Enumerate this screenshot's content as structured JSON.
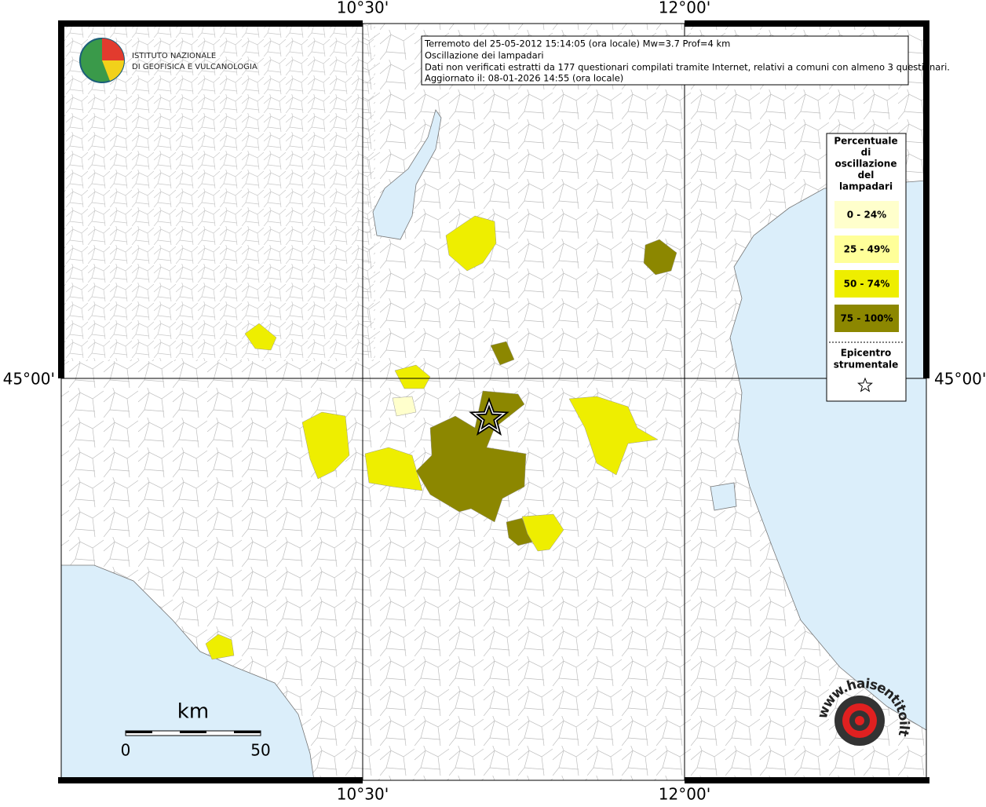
{
  "map": {
    "axis_labels": {
      "top": [
        "10°30'",
        "12°00'"
      ],
      "bottom": [
        "10°30'",
        "12°00'"
      ],
      "left": "45°00'",
      "right": "45°00'"
    },
    "info_box": [
      "Terremoto del 25-05-2012 15:14:05 (ora locale) Mw=3.7 Prof=4 km",
      "Oscillazione dei lampadari",
      "Dati non verificati estratti da 177 questionari compilati tramite Internet, relativi a comuni con almeno 3 questionari.",
      "Aggiornato il: 08-01-2026 14:55 (ora locale)"
    ],
    "legend": {
      "title": [
        "Percentuale",
        "di",
        "oscillazione",
        "del",
        "lampadari"
      ],
      "classes": [
        {
          "label": "0 - 24%",
          "color": "#ffffcc"
        },
        {
          "label": "25 - 49%",
          "color": "#ffff99"
        },
        {
          "label": "50 - 74%",
          "color": "#eeee00"
        },
        {
          "label": "75 - 100%",
          "color": "#8c8700"
        }
      ],
      "epicenter": [
        "Epicentro",
        "strumentale"
      ]
    },
    "scale_bar": {
      "unit": "km",
      "labels": [
        "0",
        "50"
      ]
    },
    "logo": [
      "ISTITUTO NAZIONALE",
      "DI GEOFISICA E VULCANOLOGIA"
    ],
    "watermark": "www.haisentitoilterremoto.it"
  }
}
